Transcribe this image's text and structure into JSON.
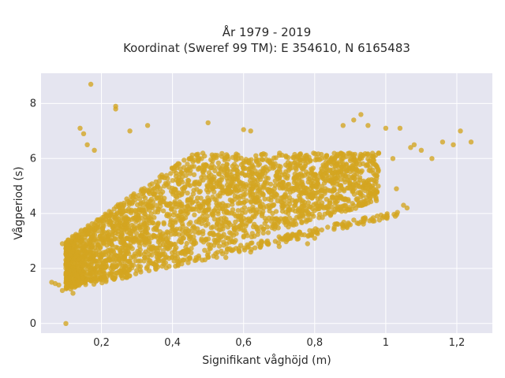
{
  "chart_data": {
    "type": "scatter",
    "title_line1": "År 1979 - 2019",
    "title_line2": "Koordinat (Sweref 99 TM): E 354610, N 6165483",
    "xlabel": "Signifikant våghöjd (m)",
    "ylabel": "Vågperiod (s)",
    "xlim": [
      0.03,
      1.3
    ],
    "ylim": [
      -0.35,
      9.1
    ],
    "xticks": [
      0.2,
      0.4,
      0.6,
      0.8,
      1.0,
      1.2
    ],
    "xtick_labels": [
      "0,2",
      "0,4",
      "0,6",
      "0,8",
      "1",
      "1,2"
    ],
    "yticks": [
      0,
      2,
      4,
      6,
      8
    ],
    "ytick_labels": [
      "0",
      "2",
      "4",
      "6",
      "8"
    ],
    "grid": true,
    "colors": {
      "marker": "#D4A520",
      "plot_bg": "#E5E5F0",
      "grid": "#ffffff"
    },
    "series": [
      {
        "points": [
          [
            0.1,
            0.0
          ],
          [
            0.17,
            8.7
          ],
          [
            0.24,
            7.9
          ],
          [
            0.24,
            7.8
          ],
          [
            0.28,
            7.0
          ],
          [
            0.33,
            7.2
          ],
          [
            0.5,
            7.3
          ],
          [
            0.6,
            7.05
          ],
          [
            0.62,
            7.0
          ],
          [
            0.88,
            7.2
          ],
          [
            0.91,
            7.4
          ],
          [
            0.93,
            7.6
          ],
          [
            0.95,
            7.2
          ],
          [
            1.0,
            7.1
          ],
          [
            1.04,
            7.1
          ],
          [
            1.21,
            7.0
          ],
          [
            1.24,
            6.6
          ],
          [
            1.19,
            6.5
          ],
          [
            1.16,
            6.6
          ],
          [
            1.13,
            6.0
          ],
          [
            1.07,
            6.4
          ],
          [
            1.06,
            4.2
          ],
          [
            1.05,
            4.3
          ],
          [
            1.1,
            6.3
          ],
          [
            0.07,
            1.45
          ],
          [
            0.06,
            1.5
          ],
          [
            0.08,
            1.4
          ],
          [
            0.09,
            1.2
          ],
          [
            0.09,
            2.9
          ],
          [
            0.12,
            1.1
          ],
          [
            0.14,
            7.1
          ],
          [
            0.15,
            6.9
          ],
          [
            0.16,
            6.5
          ],
          [
            0.18,
            6.3
          ],
          [
            0.98,
            6.2
          ],
          [
            1.02,
            6.0
          ],
          [
            0.85,
            4.8
          ],
          [
            0.9,
            5.1
          ],
          [
            0.93,
            4.6
          ],
          [
            0.97,
            4.7
          ],
          [
            1.03,
            4.9
          ],
          [
            1.08,
            6.5
          ],
          [
            0.8,
            3.1
          ],
          [
            0.78,
            2.9
          ],
          [
            0.82,
            3.4
          ],
          [
            0.62,
            2.6
          ],
          [
            0.55,
            2.4
          ],
          [
            0.7,
            2.8
          ]
        ]
      }
    ]
  }
}
